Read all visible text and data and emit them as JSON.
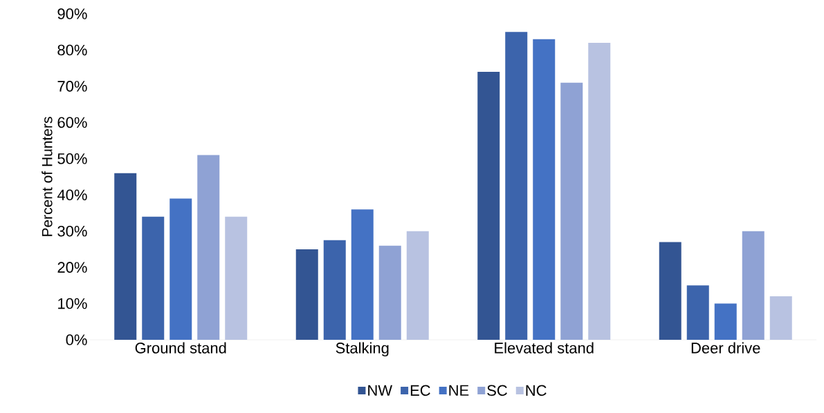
{
  "chart_data": {
    "type": "bar",
    "ylabel": "Percent of Hunters",
    "categories": [
      "Ground stand",
      "Stalking",
      "Elevated stand",
      "Deer drive"
    ],
    "series": [
      {
        "name": "NW",
        "color": "#335593",
        "values": [
          46,
          25,
          74,
          27
        ]
      },
      {
        "name": "EC",
        "color": "#3c64ac",
        "values": [
          34,
          27.5,
          85,
          15
        ]
      },
      {
        "name": "NE",
        "color": "#4472c4",
        "values": [
          39,
          36,
          83,
          10
        ]
      },
      {
        "name": "SC",
        "color": "#8fa2d4",
        "values": [
          51,
          26,
          71,
          30
        ]
      },
      {
        "name": "NC",
        "color": "#b8c2e1",
        "values": [
          34,
          30,
          82,
          12
        ]
      }
    ],
    "ylim": [
      0,
      90
    ],
    "yticks": [
      {
        "value": 0,
        "label": "0%"
      },
      {
        "value": 10,
        "label": "10%"
      },
      {
        "value": 20,
        "label": "20%"
      },
      {
        "value": 30,
        "label": "30%"
      },
      {
        "value": 40,
        "label": "40%"
      },
      {
        "value": 50,
        "label": "50%"
      },
      {
        "value": 60,
        "label": "60%"
      },
      {
        "value": 70,
        "label": "70%"
      },
      {
        "value": 80,
        "label": "80%"
      },
      {
        "value": 90,
        "label": "90%"
      }
    ],
    "grid": false,
    "legend": "bottom"
  }
}
